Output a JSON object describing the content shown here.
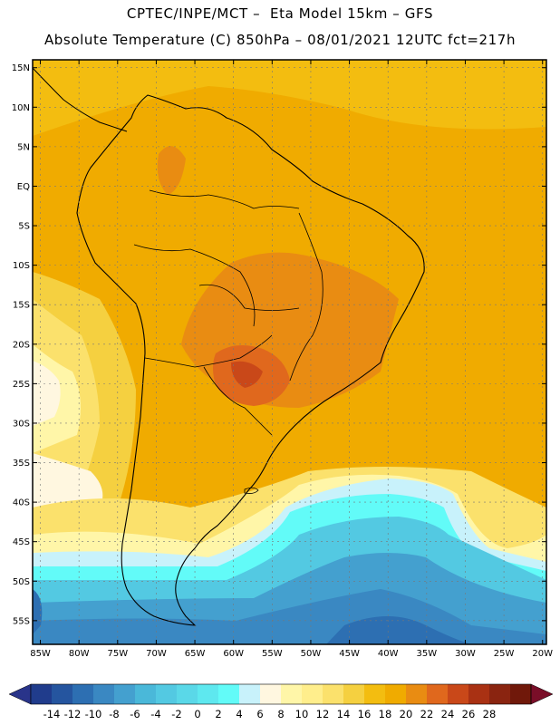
{
  "header": {
    "line1": "CPTEC/INPE/MCT –  Eta Model 15km – GFS",
    "line2": "Absolute Temperature (C) 850hPa – 08/01/2021 12UTC fct=217h"
  },
  "map": {
    "lat_labels": [
      "15N",
      "10N",
      "5N",
      "EQ",
      "5S",
      "10S",
      "15S",
      "20S",
      "25S",
      "30S",
      "35S",
      "40S",
      "45S",
      "50S",
      "55S"
    ],
    "lon_labels": [
      "85W",
      "80W",
      "75W",
      "70W",
      "65W",
      "60W",
      "55W",
      "50W",
      "45W",
      "40W",
      "35W",
      "30W",
      "25W",
      "20W"
    ],
    "lat_range": [
      -58,
      16
    ],
    "lon_range": [
      -86,
      -19.5
    ]
  },
  "colorbar": {
    "labels": [
      "-14",
      "-12",
      "-10",
      "-8",
      "-6",
      "-4",
      "-2",
      "0",
      "2",
      "4",
      "6",
      "8",
      "10",
      "12",
      "14",
      "16",
      "18",
      "20",
      "22",
      "24",
      "26",
      "28"
    ],
    "colors": [
      "#203c8c",
      "#25559f",
      "#2d6fb2",
      "#3a88c2",
      "#44a0cf",
      "#4ab8d9",
      "#53c9e2",
      "#5ad8e8",
      "#5ee8ef",
      "#62fbf8",
      "#c8f2fb",
      "#fff7e0",
      "#fff6a8",
      "#ffee8c",
      "#fbe16c",
      "#f5d040",
      "#f3bd10",
      "#f0ab00",
      "#e98c12",
      "#e0681d",
      "#c94819",
      "#a93113",
      "#8a2410",
      "#70180a"
    ],
    "under_color": "#29348a",
    "over_color": "#7a0e28"
  }
}
